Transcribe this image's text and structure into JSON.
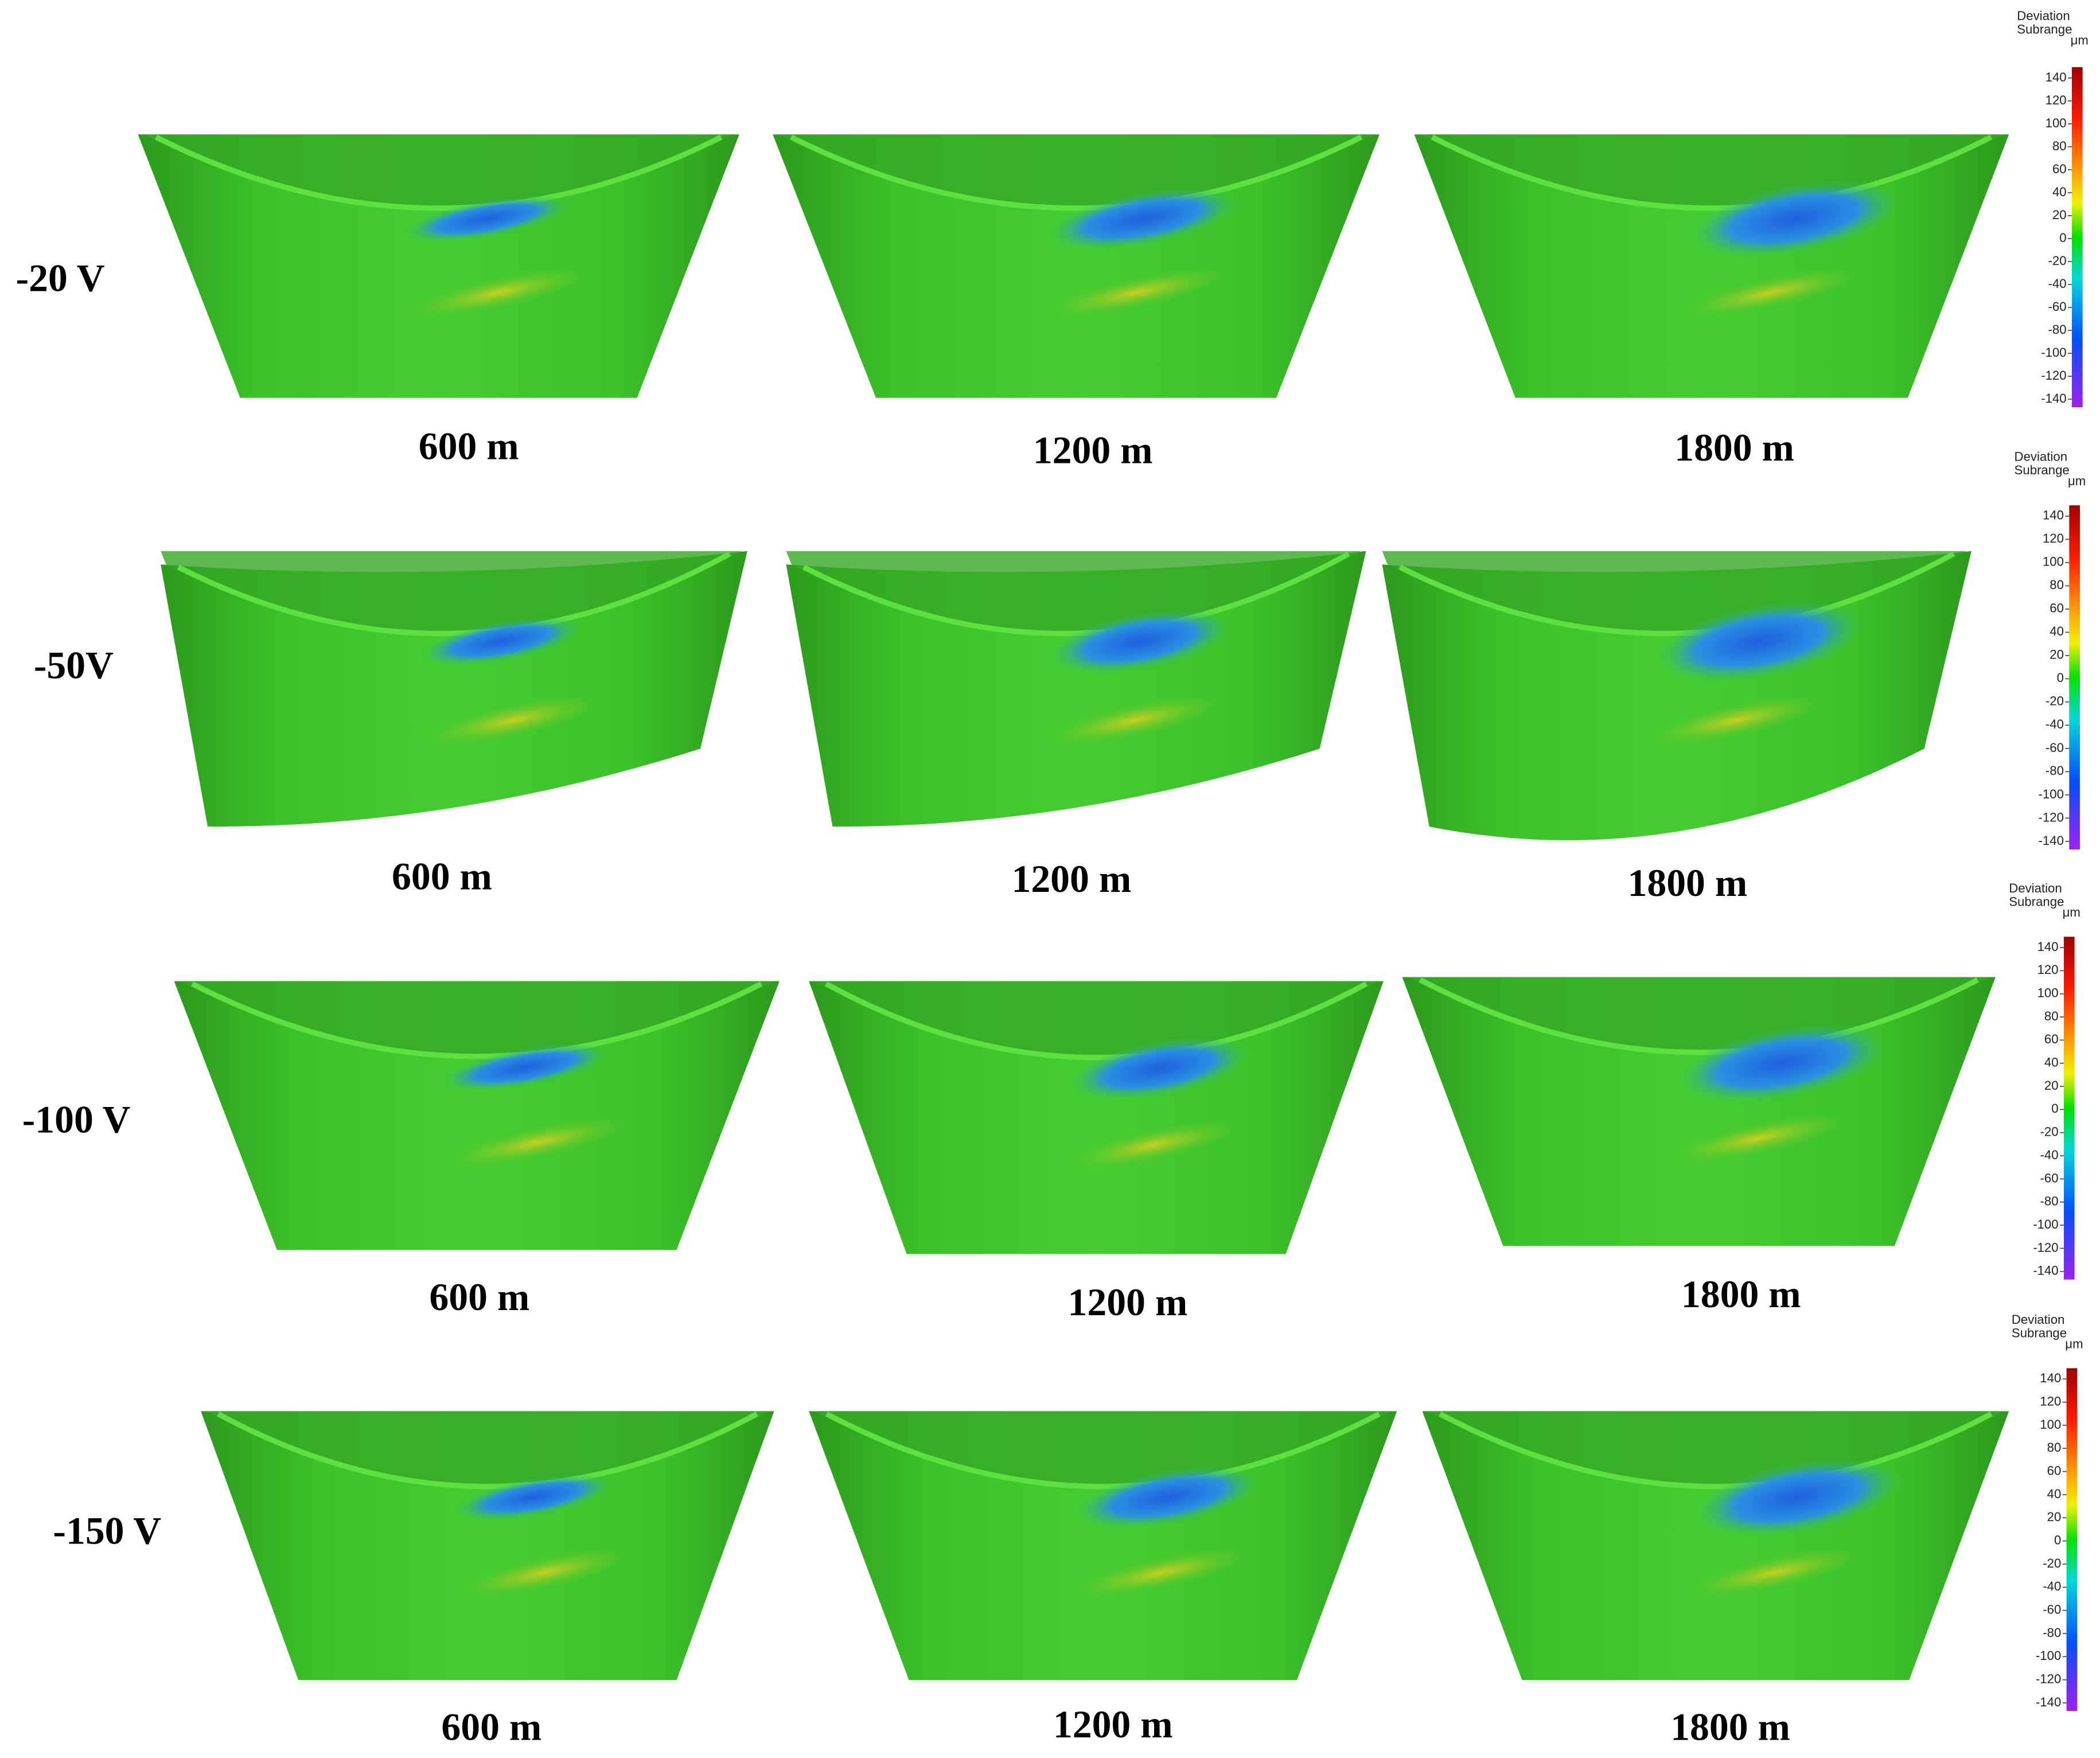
{
  "rows": [
    {
      "label": "-20 V",
      "panels": [
        "600 m",
        "1200 m",
        "1800 m"
      ],
      "colorbar": {
        "title": [
          "Deviation",
          "Subrange"
        ],
        "unit": "μm",
        "ticks": [
          140,
          120,
          100,
          80,
          60,
          40,
          20,
          0,
          -20,
          -40,
          -60,
          -80,
          -100,
          -120,
          -140
        ]
      }
    },
    {
      "label": "-50V",
      "panels": [
        "600 m",
        "1200 m",
        "1800 m"
      ],
      "colorbar": {
        "title": [
          "Deviation",
          "Subrange"
        ],
        "unit": "μm",
        "ticks": [
          140,
          120,
          100,
          80,
          60,
          40,
          20,
          0,
          -20,
          -40,
          -60,
          -80,
          -100,
          -120,
          -140
        ]
      }
    },
    {
      "label": "-100 V",
      "panels": [
        "600 m",
        "1200 m",
        "1800 m"
      ],
      "colorbar": {
        "title": [
          "Deviation",
          "Subrange"
        ],
        "unit": "μm",
        "ticks": [
          140,
          120,
          100,
          80,
          60,
          40,
          20,
          0,
          -20,
          -40,
          -60,
          -80,
          -100,
          -120,
          -140
        ]
      }
    },
    {
      "label": "-150 V",
      "panels": [
        "600 m",
        "1200 m",
        "1800 m"
      ],
      "colorbar": {
        "title": [
          "Deviation",
          "Subrange"
        ],
        "unit": "μm",
        "ticks": [
          140,
          120,
          100,
          80,
          60,
          40,
          20,
          0,
          -20,
          -40,
          -60,
          -80,
          -100,
          -120,
          -140
        ]
      }
    }
  ]
}
